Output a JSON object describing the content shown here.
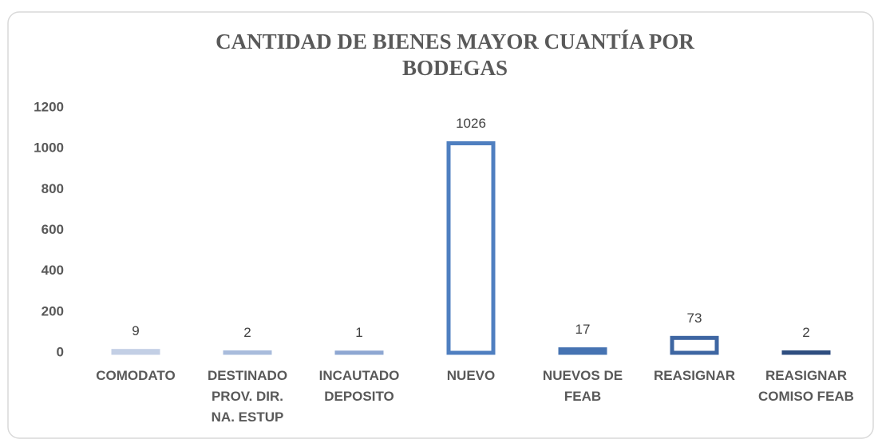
{
  "chart_data": {
    "type": "bar",
    "title": "CANTIDAD DE BIENES MAYOR CUANTÍA POR BODEGAS",
    "categories": [
      "COMODATO",
      "DESTINADO PROV. DIR. NA. ESTUP",
      "INCAUTADO DEPOSITO",
      "NUEVO",
      "NUEVOS DE FEAB",
      "REASIGNAR",
      "REASIGNAR COMISO FEAB"
    ],
    "values": [
      9,
      2,
      1,
      1026,
      17,
      73,
      2
    ],
    "colors": [
      "#c3cfe5",
      "#a9bcdc",
      "#8ea7d2",
      "#4f7fc0",
      "#4673b2",
      "#3e66a2",
      "#2f4e80"
    ],
    "ylim": [
      0,
      1200
    ],
    "yticks": [
      0,
      200,
      400,
      600,
      800,
      1000,
      1200
    ],
    "grid": false
  }
}
